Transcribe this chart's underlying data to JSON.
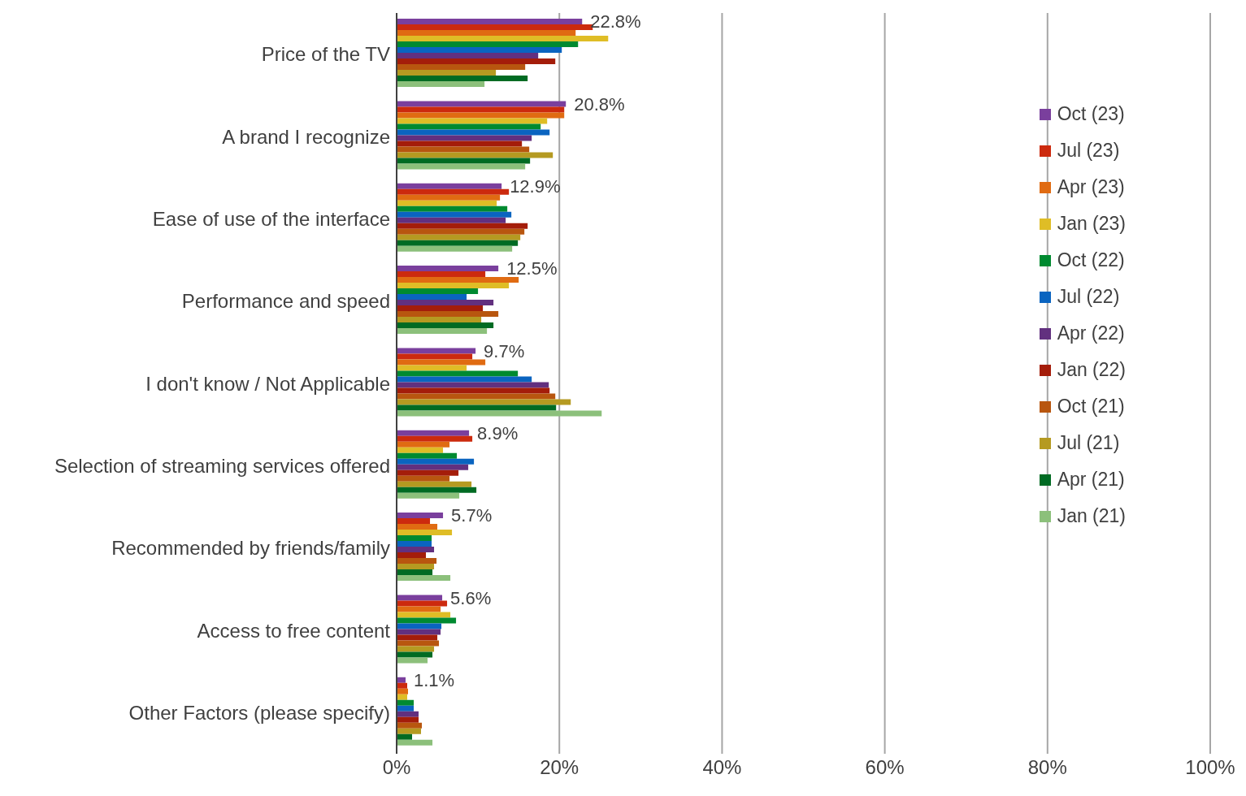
{
  "chart_data": {
    "type": "bar",
    "orientation": "horizontal",
    "categories": [
      "Price of the TV",
      "A brand I recognize",
      "Ease of use of the interface",
      "Performance and speed",
      "I don't know / Not Applicable",
      "Selection of streaming services offered",
      "Recommended by friends/family",
      "Access to free content",
      "Other Factors (please specify)"
    ],
    "series": [
      {
        "name": "Oct (23)",
        "color": "#7a3f9d",
        "values": [
          22.8,
          20.8,
          12.9,
          12.5,
          9.7,
          8.9,
          5.7,
          5.6,
          1.1
        ],
        "value_labels": [
          "22.8%",
          "20.8%",
          "12.9%",
          "12.5%",
          "9.7%",
          "8.9%",
          "5.7%",
          "5.6%",
          "1.1%"
        ]
      },
      {
        "name": "Jul (23)",
        "color": "#cc2a0e",
        "values": [
          24.1,
          20.6,
          13.8,
          10.9,
          9.3,
          9.3,
          4.1,
          6.2,
          1.3
        ]
      },
      {
        "name": "Apr (23)",
        "color": "#e06b12",
        "values": [
          22.0,
          20.6,
          12.7,
          15.0,
          10.9,
          6.5,
          5.0,
          5.4,
          1.4
        ]
      },
      {
        "name": "Jan (23)",
        "color": "#dfbd26",
        "values": [
          26.0,
          18.5,
          12.3,
          13.8,
          8.6,
          5.7,
          6.8,
          6.6,
          1.3
        ]
      },
      {
        "name": "Oct (22)",
        "color": "#008a30",
        "values": [
          22.3,
          17.7,
          13.6,
          10.0,
          14.9,
          7.4,
          4.3,
          7.3,
          2.1
        ]
      },
      {
        "name": "Jul (22)",
        "color": "#0a64c0",
        "values": [
          20.3,
          18.8,
          14.1,
          8.6,
          16.6,
          9.5,
          4.3,
          5.5,
          2.1
        ]
      },
      {
        "name": "Apr (22)",
        "color": "#62307f",
        "values": [
          17.4,
          16.6,
          13.4,
          11.9,
          18.7,
          8.8,
          4.6,
          5.4,
          2.7
        ]
      },
      {
        "name": "Jan (22)",
        "color": "#a41d0a",
        "values": [
          19.5,
          15.4,
          16.1,
          10.6,
          18.8,
          7.6,
          3.6,
          5.0,
          2.7
        ]
      },
      {
        "name": "Oct (21)",
        "color": "#b8560f",
        "values": [
          15.8,
          16.3,
          15.7,
          12.5,
          19.5,
          6.5,
          4.9,
          5.2,
          3.1
        ]
      },
      {
        "name": "Jul (21)",
        "color": "#b59a21",
        "values": [
          12.2,
          19.2,
          15.2,
          10.4,
          21.4,
          9.2,
          4.6,
          4.6,
          3.0
        ]
      },
      {
        "name": "Apr (21)",
        "color": "#006b23",
        "values": [
          16.1,
          16.4,
          14.9,
          11.9,
          19.6,
          9.8,
          4.4,
          4.4,
          1.9
        ]
      },
      {
        "name": "Jan (21)",
        "color": "#8cc07b",
        "values": [
          10.8,
          15.8,
          14.2,
          11.1,
          25.2,
          7.7,
          6.6,
          3.8,
          4.4
        ]
      }
    ],
    "xlim": [
      0,
      100
    ],
    "xticks": [
      {
        "value": 0,
        "label": "0%"
      },
      {
        "value": 20,
        "label": "20%"
      },
      {
        "value": 40,
        "label": "40%"
      },
      {
        "value": 60,
        "label": "60%"
      },
      {
        "value": 80,
        "label": "80%"
      },
      {
        "value": 100,
        "label": "100%"
      }
    ],
    "grid": "x",
    "legend": "right"
  }
}
